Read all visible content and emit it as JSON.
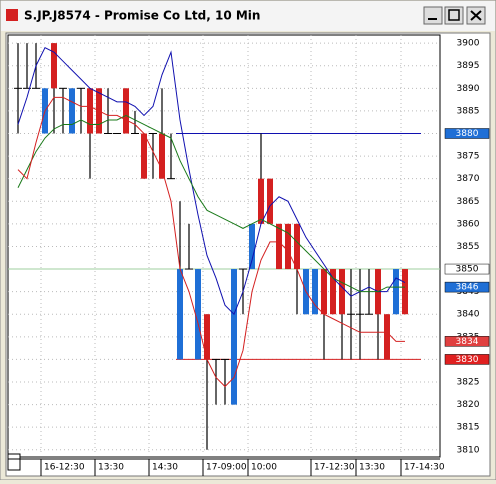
{
  "window": {
    "title": "S.JP.J8574 - Promise Co Ltd, 10 Min"
  },
  "chart_data": {
    "type": "candlestick",
    "up_color": "#1f6fd6",
    "down_color": "#d42020",
    "categories": [
      null,
      null,
      null,
      "16-12:30",
      null,
      null,
      null,
      null,
      null,
      "13:30",
      null,
      null,
      null,
      null,
      null,
      "14:30",
      null,
      null,
      null,
      null,
      null,
      "17-09:00",
      null,
      null,
      null,
      null,
      "10:00",
      null,
      null,
      null,
      null,
      null,
      null,
      "17-12:30",
      null,
      null,
      null,
      null,
      "13:30",
      null,
      null,
      null,
      null,
      "17-14:30"
    ],
    "open": [
      3890,
      3890,
      3890,
      3880,
      3900,
      3890,
      3880,
      3890,
      3890,
      3890,
      3880,
      3880,
      3890,
      3880,
      3880,
      3880,
      3880,
      3870,
      3830,
      3850,
      3830,
      3840,
      3830,
      3830,
      3820,
      3850,
      3850,
      3870,
      3870,
      3860,
      3860,
      3860,
      3840,
      3840,
      3850,
      3850,
      3850,
      3840,
      3840,
      3840,
      3850,
      3840,
      3840,
      3850
    ],
    "high": [
      3900,
      3900,
      3900,
      3890,
      3900,
      3890,
      3890,
      3890,
      3890,
      3890,
      3890,
      3880,
      3890,
      3885,
      3880,
      3880,
      3890,
      3880,
      3865,
      3860,
      3850,
      3840,
      3830,
      3830,
      3850,
      3850,
      3860,
      3880,
      3870,
      3860,
      3860,
      3860,
      3850,
      3850,
      3850,
      3850,
      3850,
      3850,
      3850,
      3850,
      3850,
      3840,
      3850,
      3850
    ],
    "low": [
      3880,
      3890,
      3890,
      3880,
      3880,
      3880,
      3880,
      3880,
      3870,
      3880,
      3880,
      3880,
      3880,
      3880,
      3870,
      3870,
      3870,
      3870,
      3830,
      3850,
      3830,
      3810,
      3820,
      3820,
      3820,
      3840,
      3850,
      3860,
      3860,
      3850,
      3850,
      3840,
      3840,
      3840,
      3830,
      3840,
      3830,
      3830,
      3830,
      3840,
      3830,
      3830,
      3840,
      3840
    ],
    "close": [
      3890,
      3890,
      3890,
      3890,
      3890,
      3890,
      3890,
      3890,
      3880,
      3880,
      3880,
      3880,
      3880,
      3880,
      3870,
      3880,
      3870,
      3870,
      3850,
      3850,
      3850,
      3830,
      3830,
      3830,
      3850,
      3850,
      3860,
      3860,
      3860,
      3850,
      3850,
      3850,
      3850,
      3850,
      3840,
      3840,
      3840,
      3840,
      3840,
      3840,
      3840,
      3830,
      3850,
      3840
    ],
    "series": [
      {
        "color": "#1010b0",
        "values": [
          3882,
          3888,
          3895,
          3899,
          3898,
          3896,
          3894,
          3892,
          3890,
          3889,
          3888,
          3887,
          3887,
          3886,
          3884,
          3886,
          3893,
          3898,
          3883,
          3872,
          3862,
          3853,
          3848,
          3842,
          3840,
          3845,
          3852,
          3860,
          3864,
          3866,
          3865,
          3861,
          3857,
          3854,
          3851,
          3848,
          3846,
          3844,
          3845,
          3846,
          3845,
          3845,
          3848,
          3847
        ]
      },
      {
        "color": "#1a7a1a",
        "values": [
          3868,
          3872,
          3876,
          3879,
          3881,
          3882,
          3882,
          3883,
          3882,
          3882,
          3883,
          3883,
          3884,
          3883,
          3882,
          3881,
          3880,
          3879,
          3874,
          3870,
          3866,
          3863,
          3862,
          3861,
          3860,
          3859,
          3860,
          3861,
          3860,
          3859,
          3858,
          3856,
          3854,
          3852,
          3850,
          3848,
          3847,
          3846,
          3845,
          3845,
          3845,
          3846,
          3846,
          3846
        ]
      },
      {
        "color": "#d42020",
        "values": [
          3872,
          3870,
          3878,
          3885,
          3888,
          3888,
          3887,
          3886,
          3886,
          3885,
          3884,
          3884,
          3883,
          3882,
          3880,
          3876,
          3872,
          3865,
          3850,
          3845,
          3838,
          3830,
          3826,
          3824,
          3826,
          3832,
          3845,
          3852,
          3856,
          3856,
          3854,
          3850,
          3845,
          3842,
          3840,
          3839,
          3838,
          3837,
          3836,
          3836,
          3836,
          3836,
          3834,
          3834
        ]
      }
    ],
    "levels": [
      {
        "value": 3880,
        "color": "#1010b0",
        "from": 18
      },
      {
        "value": 3850,
        "color": "#9fcf9f",
        "from": 0
      },
      {
        "value": 3830,
        "color": "#d42020",
        "from": 18
      }
    ],
    "price_tags": [
      {
        "value": 3880,
        "color": "#1f6fd6"
      },
      {
        "value": 3850,
        "color": "#ffffff"
      },
      {
        "value": 3846,
        "color": "#1f6fd6"
      },
      {
        "value": 3834,
        "color": "#e04040"
      },
      {
        "value": 3830,
        "color": "#e02020"
      }
    ],
    "ylim": [
      3808.4,
      3901.8
    ],
    "yticks": [
      3810,
      3815,
      3820,
      3825,
      3830,
      3835,
      3840,
      3845,
      3850,
      3855,
      3860,
      3865,
      3870,
      3875,
      3880,
      3885,
      3890,
      3895,
      3900
    ],
    "grid": true
  }
}
